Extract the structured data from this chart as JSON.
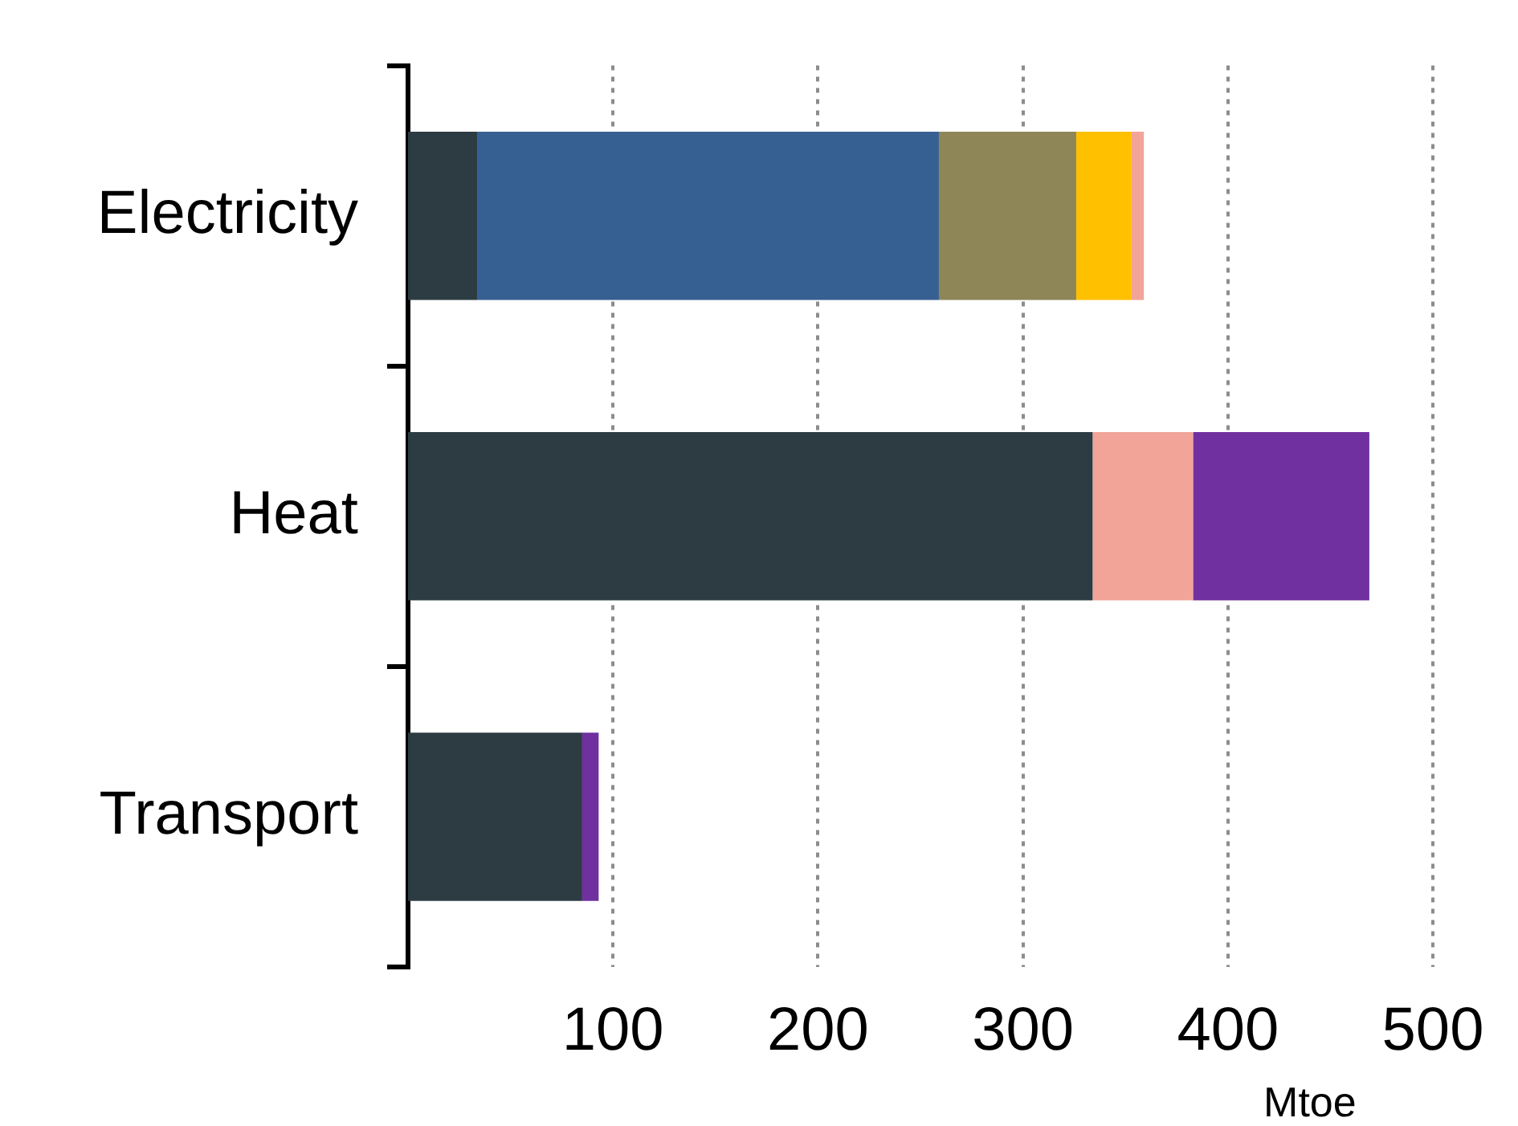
{
  "chart_data": {
    "type": "bar",
    "orientation": "horizontal",
    "stacked": true,
    "xlabel": "Mtoe",
    "categories": [
      "Electricity",
      "Heat",
      "Transport"
    ],
    "series": [
      {
        "color": "#2d3c43",
        "values": [
          34,
          334,
          85
        ]
      },
      {
        "color": "#366092",
        "values": [
          225,
          null,
          null
        ]
      },
      {
        "color": "#8e8656",
        "values": [
          67,
          null,
          null
        ]
      },
      {
        "color": "#ffc000",
        "values": [
          27,
          null,
          null
        ]
      },
      {
        "color": "#f2a498",
        "values": [
          6,
          49,
          null
        ]
      },
      {
        "color": "#7030a0",
        "values": [
          null,
          86,
          8
        ]
      }
    ],
    "xlim": [
      0,
      500
    ],
    "xticks": [
      100,
      200,
      300,
      400,
      500
    ],
    "grid": "x",
    "legend": false
  }
}
